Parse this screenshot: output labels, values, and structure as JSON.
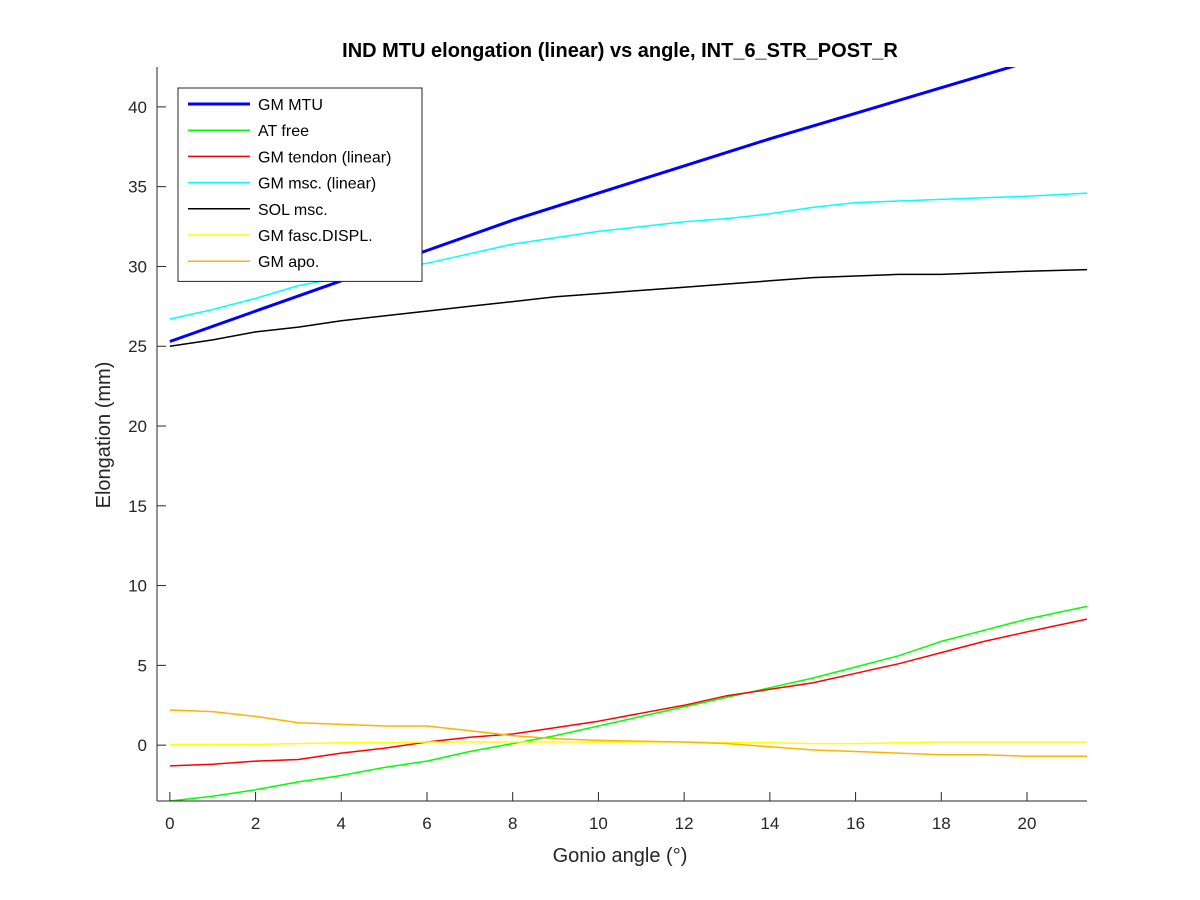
{
  "chart_data": {
    "type": "line",
    "title": "IND MTU elongation (linear) vs angle, INT_6_STR_POST_R",
    "xlabel": "Gonio angle (°)",
    "ylabel": "Elongation (mm)",
    "xlim": [
      -0.3,
      21.4
    ],
    "ylim": [
      -3.5,
      42.5
    ],
    "xticks": [
      "0",
      "2",
      "4",
      "6",
      "8",
      "10",
      "12",
      "14",
      "16",
      "18",
      "20"
    ],
    "yticks": [
      "0",
      "5",
      "10",
      "15",
      "20",
      "25",
      "30",
      "35",
      "40"
    ],
    "legend_position": "top-left",
    "grid": false,
    "series": [
      {
        "name": "GM MTU",
        "color": "#0000ff",
        "thick": true,
        "x": [
          0,
          2,
          4,
          6,
          8,
          10,
          12,
          14,
          16,
          18,
          20,
          21.4
        ],
        "y": [
          25.3,
          27.2,
          29.1,
          31.0,
          32.9,
          34.6,
          36.3,
          38.0,
          39.6,
          41.2,
          42.8,
          44.0
        ]
      },
      {
        "name": "AT free",
        "color": "#00ff00",
        "thick": false,
        "x": [
          0,
          1,
          2,
          3,
          4,
          5,
          6,
          7,
          8,
          9,
          10,
          11,
          12,
          13,
          14,
          15,
          16,
          17,
          18,
          19,
          20,
          21.4
        ],
        "y": [
          -3.5,
          -3.2,
          -2.8,
          -2.3,
          -1.9,
          -1.4,
          -1.0,
          -0.4,
          0.1,
          0.6,
          1.2,
          1.8,
          2.4,
          3.0,
          3.6,
          4.2,
          4.9,
          5.6,
          6.5,
          7.2,
          7.9,
          8.7
        ]
      },
      {
        "name": "GM tendon (linear)",
        "color": "#ff0000",
        "thick": false,
        "x": [
          0,
          1,
          2,
          3,
          4,
          5,
          6,
          7,
          8,
          9,
          10,
          11,
          12,
          13,
          14,
          15,
          16,
          17,
          18,
          19,
          20,
          21.4
        ],
        "y": [
          -1.3,
          -1.2,
          -1.0,
          -0.9,
          -0.5,
          -0.2,
          0.2,
          0.5,
          0.7,
          1.1,
          1.5,
          2.0,
          2.5,
          3.1,
          3.5,
          3.9,
          4.5,
          5.1,
          5.8,
          6.5,
          7.1,
          7.9
        ]
      },
      {
        "name": "GM msc. (linear)",
        "color": "#00ffff",
        "thick": false,
        "x": [
          0,
          1,
          2,
          3,
          4,
          5,
          6,
          7,
          8,
          9,
          10,
          11,
          12,
          13,
          14,
          15,
          16,
          17,
          18,
          19,
          20,
          21.4
        ],
        "y": [
          26.7,
          27.3,
          28.0,
          28.8,
          29.3,
          29.8,
          30.2,
          30.8,
          31.4,
          31.8,
          32.2,
          32.5,
          32.8,
          33.0,
          33.3,
          33.7,
          34.0,
          34.1,
          34.2,
          34.3,
          34.4,
          34.6
        ]
      },
      {
        "name": "SOL msc.",
        "color": "#000000",
        "thick": false,
        "x": [
          0,
          1,
          2,
          3,
          4,
          5,
          6,
          7,
          8,
          9,
          10,
          11,
          12,
          13,
          14,
          15,
          16,
          17,
          18,
          19,
          20,
          21.4
        ],
        "y": [
          25.0,
          25.4,
          25.9,
          26.2,
          26.6,
          26.9,
          27.2,
          27.5,
          27.8,
          28.1,
          28.3,
          28.5,
          28.7,
          28.9,
          29.1,
          29.3,
          29.4,
          29.5,
          29.5,
          29.6,
          29.7,
          29.8
        ]
      },
      {
        "name": "GM fasc.DISPL.",
        "color": "#ffff00",
        "thick": false,
        "x": [
          0,
          1,
          2,
          3,
          4,
          5,
          6,
          7,
          8,
          9,
          10,
          11,
          12,
          13,
          14,
          15,
          16,
          17,
          18,
          19,
          20,
          21.4
        ],
        "y": [
          0.05,
          0.05,
          0.05,
          0.1,
          0.15,
          0.15,
          0.2,
          0.2,
          0.2,
          0.2,
          0.2,
          0.2,
          0.2,
          0.15,
          0.15,
          0.1,
          0.1,
          0.15,
          0.2,
          0.2,
          0.2,
          0.2
        ]
      },
      {
        "name": "GM apo.",
        "color": "#ffb300",
        "thick": false,
        "x": [
          0,
          1,
          2,
          3,
          4,
          5,
          6,
          7,
          8,
          9,
          10,
          11,
          12,
          13,
          14,
          15,
          16,
          17,
          18,
          19,
          20,
          21.4
        ],
        "y": [
          2.2,
          2.1,
          1.8,
          1.4,
          1.3,
          1.2,
          1.2,
          0.9,
          0.6,
          0.4,
          0.3,
          0.25,
          0.2,
          0.1,
          -0.1,
          -0.3,
          -0.4,
          -0.5,
          -0.6,
          -0.6,
          -0.7,
          -0.7
        ]
      }
    ]
  }
}
